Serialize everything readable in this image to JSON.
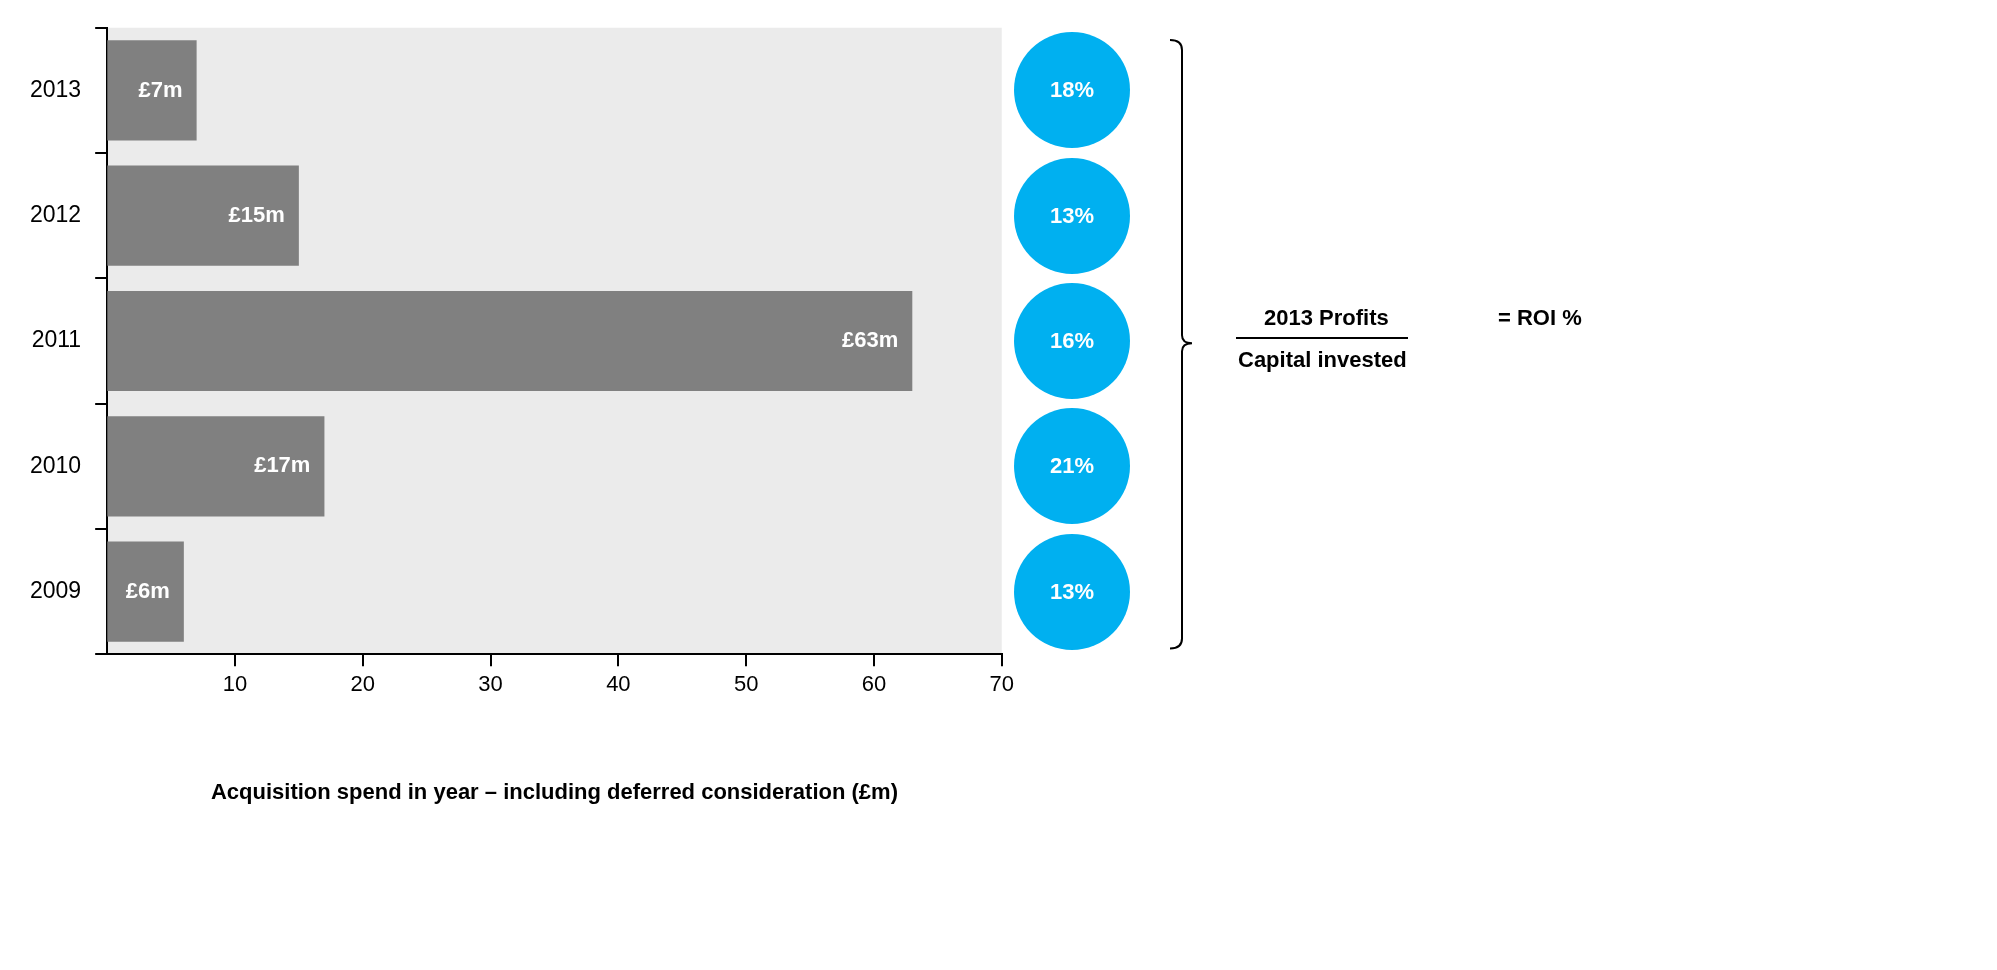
{
  "chart_data": {
    "type": "bar",
    "orientation": "horizontal",
    "categories": [
      "2013",
      "2012",
      "2011",
      "2010",
      "2009"
    ],
    "values": [
      7,
      15,
      63,
      17,
      6
    ],
    "color": "#808080",
    "value_labels": [
      "£7m",
      "£15m",
      "£63m",
      "£17m",
      "£6m"
    ],
    "xlabel": "Acquisition spend in year – including deferred consideration (£m)",
    "xlim": [
      0,
      70
    ],
    "xticks": [
      10,
      20,
      30,
      40,
      50,
      60,
      70
    ],
    "grid": false,
    "legend": false,
    "annotations": [
      "18%",
      "13%",
      "16%",
      "21%",
      "13%",
      "2013 Profits",
      "Capital invested",
      "= ROI %"
    ]
  }
}
